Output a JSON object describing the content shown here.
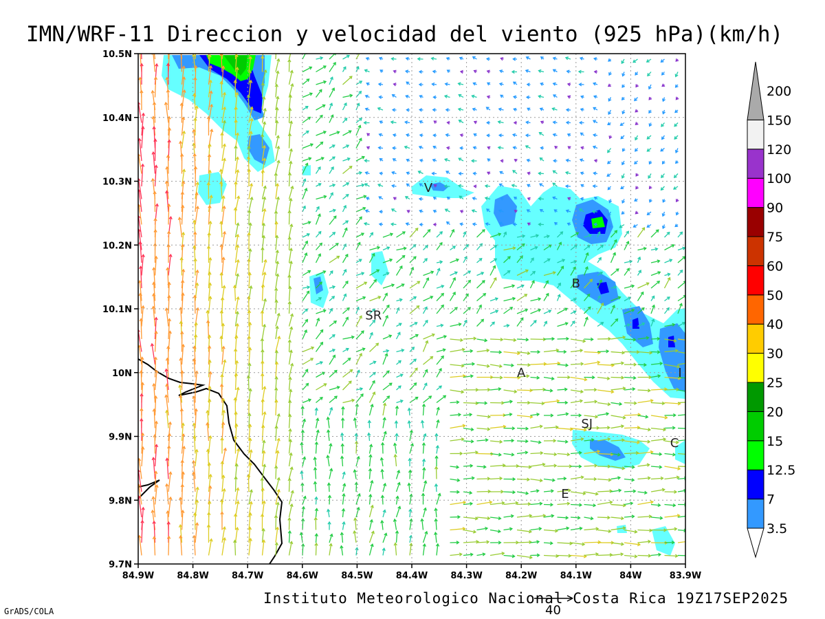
{
  "title": "IMN/WRF-11 Direccion y velocidad del viento (925 hPa)(km/h)",
  "footer": "Instituto Meteorologico Nacional Costa Rica 19Z17SEP2025",
  "credit": "GrADS/COLA",
  "reference_vector": {
    "label": "40",
    "icon": "arrow-right-icon"
  },
  "axes": {
    "x_ticks": [
      "84.9W",
      "84.8W",
      "84.7W",
      "84.6W",
      "84.5W",
      "84.4W",
      "84.3W",
      "84.2W",
      "84.1W",
      "84W",
      "83.9W"
    ],
    "y_ticks": [
      "9.7N",
      "9.8N",
      "9.9N",
      "10N",
      "10.1N",
      "10.2N",
      "10.3N",
      "10.4N",
      "10.5N"
    ],
    "lon_range": [
      -84.9,
      -83.9
    ],
    "lat_range": [
      9.7,
      10.5
    ],
    "grid": "dotted"
  },
  "colorbar": {
    "levels": [
      {
        "label": "3.5",
        "color": "#66ffff"
      },
      {
        "label": "7",
        "color": "#3399ff"
      },
      {
        "label": "12.5",
        "color": "#0000ff"
      },
      {
        "label": "15",
        "color": "#00ff00"
      },
      {
        "label": "20",
        "color": "#00cc00"
      },
      {
        "label": "25",
        "color": "#009900"
      },
      {
        "label": "30",
        "color": "#ffff00"
      },
      {
        "label": "40",
        "color": "#ffcc00"
      },
      {
        "label": "50",
        "color": "#ff6600"
      },
      {
        "label": "60",
        "color": "#ff0000"
      },
      {
        "label": "75",
        "color": "#cc3300"
      },
      {
        "label": "90",
        "color": "#990000"
      },
      {
        "label": "100",
        "color": "#ff00ff"
      },
      {
        "label": "120",
        "color": "#9933cc"
      },
      {
        "label": "150",
        "color": "#f2f2f2"
      },
      {
        "label": "200",
        "color": "#aaaaaa"
      }
    ]
  },
  "cities": [
    {
      "label": "V",
      "lon": -84.37,
      "lat": 10.29
    },
    {
      "label": "SR",
      "lon": -84.47,
      "lat": 10.09
    },
    {
      "label": "B",
      "lon": -84.1,
      "lat": 10.14
    },
    {
      "label": "A",
      "lon": -84.2,
      "lat": 10.0
    },
    {
      "label": "I",
      "lon": -83.91,
      "lat": 10.0
    },
    {
      "label": "SJ",
      "lon": -84.08,
      "lat": 9.92
    },
    {
      "label": "C",
      "lon": -83.92,
      "lat": 9.89
    },
    {
      "label": "E",
      "lon": -84.12,
      "lat": 9.81
    }
  ]
}
